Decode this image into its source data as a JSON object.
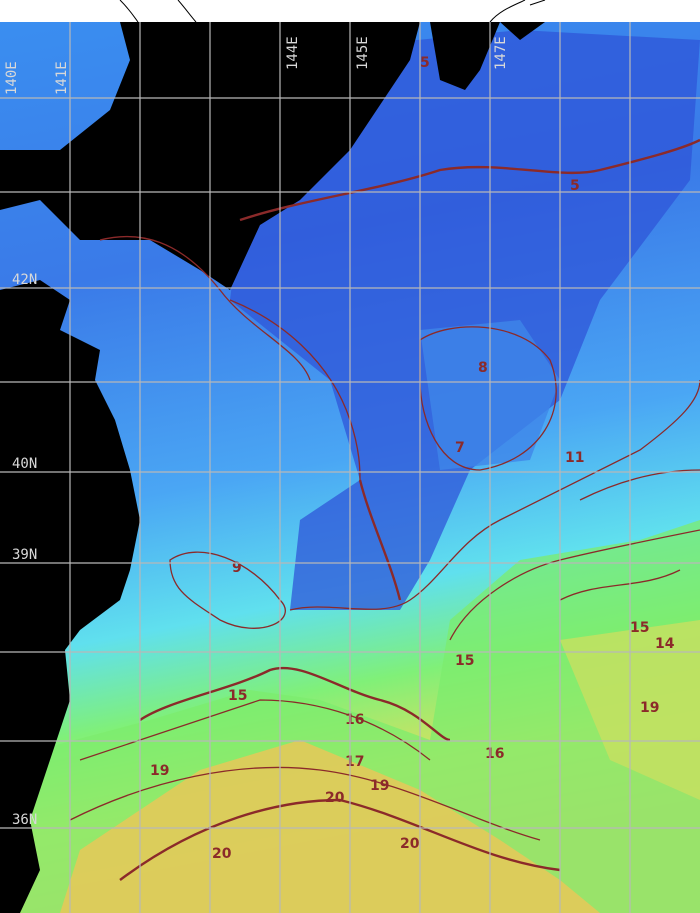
{
  "map": {
    "type": "sea surface temperature contour map",
    "longitude_labels": [
      "140E",
      "141E",
      "144E",
      "145E",
      "147E"
    ],
    "latitude_labels": [
      "42N",
      "40N",
      "39N",
      "36N"
    ],
    "contour_labels": [
      "5",
      "5",
      "8",
      "7",
      "9",
      "11",
      "14",
      "15",
      "15",
      "15",
      "16",
      "16",
      "17",
      "19",
      "19",
      "19",
      "20",
      "20",
      "20"
    ],
    "colors": {
      "cold": "#2a4fd8",
      "cool": "#3a9df0",
      "mild": "#5fe0f0",
      "warm": "#7ef07a",
      "hot": "#f0d060",
      "land": "#000000",
      "contour": "#8b2a2a",
      "grid": "#b8b8b8"
    }
  }
}
